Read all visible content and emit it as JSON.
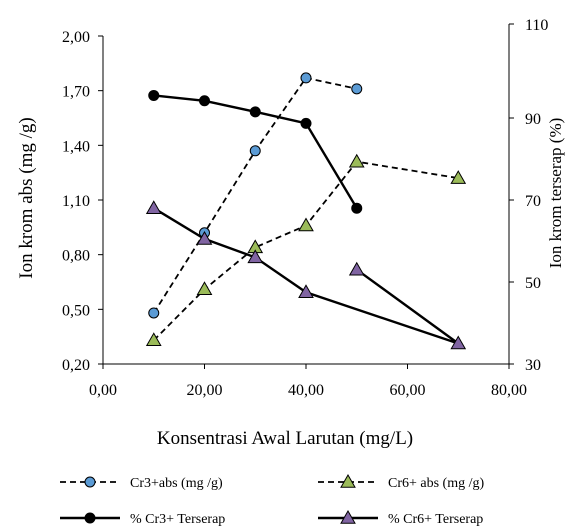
{
  "chart_data": {
    "type": "line",
    "title": "",
    "xlabel": "Konsentrasi Awal Larutan (mg/L)",
    "ylabel_left": "Ion krom  abs  (mg /g)",
    "ylabel_right": "Ion krom terserap (%)",
    "xlim": [
      0,
      80
    ],
    "ylim_left": [
      0.2,
      2.0
    ],
    "ylim_right": [
      30,
      110
    ],
    "x_ticks": [
      "0,00",
      "20,00",
      "40,00",
      "60,00",
      "80,00"
    ],
    "y_left_ticks": [
      "0,20",
      "0,50",
      "0,80",
      "1,10",
      "1,40",
      "1,70",
      "2,00"
    ],
    "y_right_ticks": [
      "30",
      "50",
      "70",
      "90",
      "110"
    ],
    "grid": false,
    "legend_position": "bottom",
    "series": [
      {
        "name": "Cr3+abs  (mg /g)",
        "axis": "left",
        "line": "dashed",
        "marker": "circle",
        "marker_color": "#5b9bd5",
        "x": [
          10,
          20,
          30,
          40,
          50
        ],
        "values": [
          0.48,
          0.92,
          1.37,
          1.77,
          1.71
        ]
      },
      {
        "name": "Cr6+ abs  (mg /g)",
        "axis": "left",
        "line": "dashed",
        "marker": "triangle",
        "marker_color": "#9bbb59",
        "x": [
          10,
          20,
          30,
          40,
          50,
          70
        ],
        "values": [
          0.33,
          0.61,
          0.84,
          0.96,
          1.31,
          1.22
        ]
      },
      {
        "name": "% Cr3+ Terserap",
        "axis": "right",
        "line": "solid",
        "marker": "circle",
        "marker_color": "#000000",
        "x": [
          10,
          20,
          30,
          40,
          50
        ],
        "values": [
          95.5,
          94.2,
          91.5,
          88.7,
          68.0
        ]
      },
      {
        "name": "% Cr6+ Terserap",
        "axis": "right",
        "line": "solid",
        "marker": "triangle",
        "marker_color": "#8064a2",
        "x": [
          10,
          20,
          30,
          40,
          70,
          50
        ],
        "values": [
          68.0,
          60.5,
          56.0,
          47.5,
          35.0,
          53.0
        ]
      }
    ]
  }
}
